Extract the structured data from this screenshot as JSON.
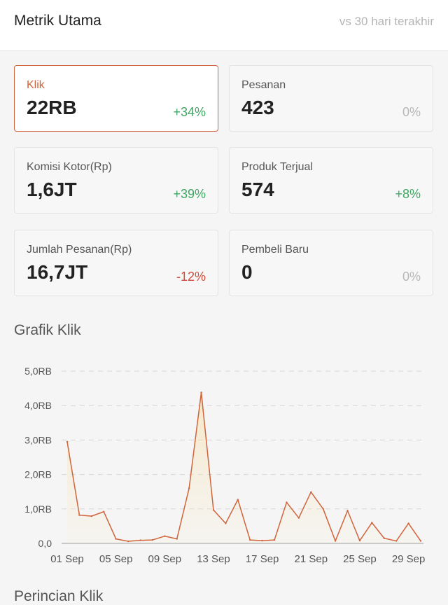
{
  "header": {
    "title": "Metrik Utama",
    "subtitle": "vs 30 hari terakhir"
  },
  "metrics": [
    {
      "label": "Klik",
      "value": "22RB",
      "change": "+34%",
      "trend": "pos",
      "active": true
    },
    {
      "label": "Pesanan",
      "value": "423",
      "change": "0%",
      "trend": "zero",
      "active": false
    },
    {
      "label": "Komisi Kotor(Rp)",
      "value": "1,6JT",
      "change": "+39%",
      "trend": "pos",
      "active": false
    },
    {
      "label": "Produk Terjual",
      "value": "574",
      "change": "+8%",
      "trend": "pos",
      "active": false
    },
    {
      "label": "Jumlah Pesanan(Rp)",
      "value": "16,7JT",
      "change": "-12%",
      "trend": "neg",
      "active": false
    },
    {
      "label": "Pembeli Baru",
      "value": "0",
      "change": "0%",
      "trend": "zero",
      "active": false
    }
  ],
  "chart_section_title": "Grafik Klik",
  "next_section_title": "Perincian Klik",
  "colors": {
    "accent": "#d0643c",
    "positive": "#3fa864",
    "negative": "#d04b3a",
    "neutral": "#b8b8b8",
    "line": "#d0643c"
  },
  "chart_data": {
    "type": "line",
    "title": "Grafik Klik",
    "x": [
      "01 Sep",
      "02 Sep",
      "03 Sep",
      "04 Sep",
      "05 Sep",
      "06 Sep",
      "07 Sep",
      "08 Sep",
      "09 Sep",
      "10 Sep",
      "11 Sep",
      "12 Sep",
      "13 Sep",
      "14 Sep",
      "15 Sep",
      "16 Sep",
      "17 Sep",
      "18 Sep",
      "19 Sep",
      "20 Sep",
      "21 Sep",
      "22 Sep",
      "23 Sep",
      "24 Sep",
      "25 Sep",
      "26 Sep",
      "27 Sep",
      "28 Sep",
      "29 Sep",
      "30 Sep"
    ],
    "values": [
      2950,
      820,
      790,
      920,
      130,
      60,
      90,
      100,
      210,
      130,
      1600,
      4380,
      970,
      580,
      1270,
      100,
      80,
      100,
      1190,
      740,
      1490,
      1000,
      70,
      950,
      80,
      600,
      150,
      70,
      580,
      70
    ],
    "x_tick_labels": [
      "01 Sep",
      "05 Sep",
      "09 Sep",
      "13 Sep",
      "17 Sep",
      "21 Sep",
      "25 Sep",
      "29 Sep"
    ],
    "y_tick_labels": [
      "0,0",
      "1,0RB",
      "2,0RB",
      "3,0RB",
      "4,0RB",
      "5,0RB"
    ],
    "ylim": [
      0,
      5000
    ],
    "grid": true,
    "legend": "none"
  }
}
